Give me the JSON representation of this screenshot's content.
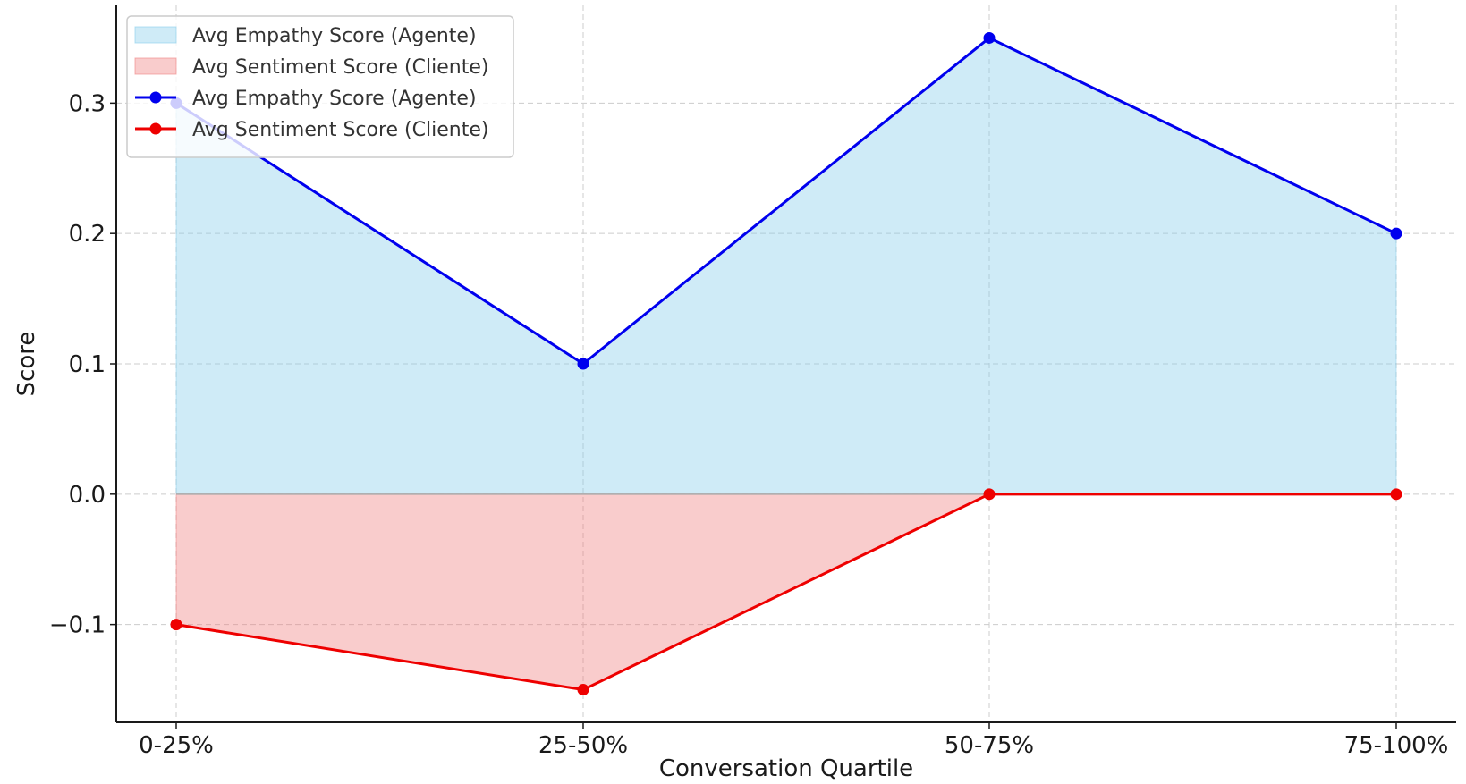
{
  "chart_data": {
    "type": "area",
    "categories": [
      "0-25%",
      "25-50%",
      "50-75%",
      "75-100%"
    ],
    "series": [
      {
        "name": "Avg Empathy Score (Agente)",
        "values": [
          0.3,
          0.1,
          0.35,
          0.2
        ],
        "line_color": "#0000ee",
        "fill_color": "#87ceeb"
      },
      {
        "name": "Avg Sentiment Score (Cliente)",
        "values": [
          -0.1,
          -0.15,
          0.0,
          0.0
        ],
        "line_color": "#ee0000",
        "fill_color": "#f08080"
      }
    ],
    "title": "",
    "xlabel": "Conversation Quartile",
    "ylabel": "Score",
    "ylim": [
      -0.175,
      0.375
    ],
    "yticks": [
      -0.1,
      0.0,
      0.1,
      0.2,
      0.3
    ],
    "ytick_labels": [
      "−0.1",
      "0.0",
      "0.1",
      "0.2",
      "0.3"
    ],
    "grid": true,
    "legend": {
      "position": "top-left",
      "entries": [
        {
          "label": "Avg Empathy Score (Agente)",
          "kind": "fill",
          "series": 0
        },
        {
          "label": "Avg Sentiment Score (Cliente)",
          "kind": "fill",
          "series": 1
        },
        {
          "label": "Avg Empathy Score (Agente)",
          "kind": "line",
          "series": 0
        },
        {
          "label": "Avg Sentiment Score (Cliente)",
          "kind": "line",
          "series": 1
        }
      ]
    }
  }
}
